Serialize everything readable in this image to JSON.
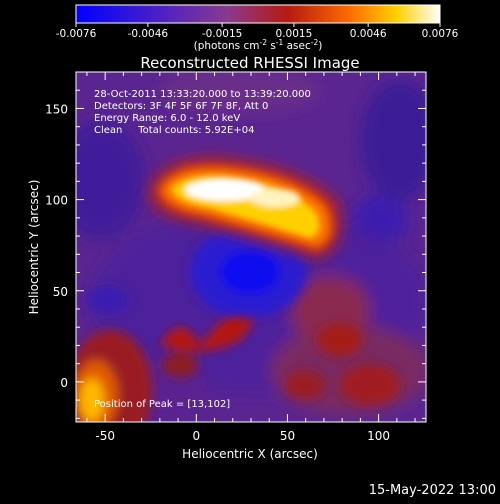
{
  "chart_data": {
    "type": "heatmap",
    "title": "Reconstructed RHESSI Image",
    "xlabel": "Heliocentric X (arcsec)",
    "ylabel": "Heliocentric Y (arcsec)",
    "xlim": [
      -66,
      126
    ],
    "ylim": [
      -22,
      170
    ],
    "x_ticks": [
      "-50",
      "0",
      "50",
      "100"
    ],
    "y_ticks": [
      "0",
      "50",
      "100",
      "150"
    ],
    "x_tick_values": [
      -50,
      0,
      50,
      100
    ],
    "y_tick_values": [
      0,
      50,
      100,
      150
    ],
    "colorbar": {
      "min": -0.0076,
      "max": 0.0076,
      "tick_labels": [
        "-0.0076",
        "-0.0046",
        "-0.0015",
        "0.0015",
        "0.0046",
        "0.0076"
      ],
      "tick_values": [
        -0.0076,
        -0.0046,
        -0.0015,
        0.0015,
        0.0046,
        0.0076
      ],
      "unit_label": "(photons cm",
      "unit_exp1": "-2",
      "unit_mid": " s",
      "unit_exp2": "-1",
      "unit_end": " asec",
      "unit_exp3": "-2",
      "unit_close": ")"
    },
    "annotations": [
      "28-Oct-2011 13:33:20.000 to 13:39:20.000",
      "Detectors: 3F 4F 5F 6F 7F 8F, Att 0",
      "Energy Range: 6.0 - 12.0 keV",
      "Clean     Total counts: 5.92E+04"
    ],
    "peak_label": "Position of Peak = [13,102]",
    "peak_position": [
      13,
      102
    ],
    "features": [
      {
        "name": "bright arc",
        "x": [
          -20,
          70
        ],
        "y": [
          85,
          115
        ],
        "level": "max"
      },
      {
        "name": "dark core",
        "x": [
          20,
          40
        ],
        "y": [
          47,
          62
        ],
        "level": "min"
      },
      {
        "name": "lower-left lobe",
        "x": [
          -65,
          -40
        ],
        "y": [
          -22,
          30
        ],
        "level": "high"
      }
    ],
    "timestamp": "15-May-2022 13:00"
  },
  "colors": {
    "colormap": [
      "#0000ff",
      "#6a1fb0",
      "#8a3a8a",
      "#b51a10",
      "#ff6a00",
      "#ffd000",
      "#ffffff"
    ],
    "background": "#000000",
    "text": "#ffffff"
  }
}
